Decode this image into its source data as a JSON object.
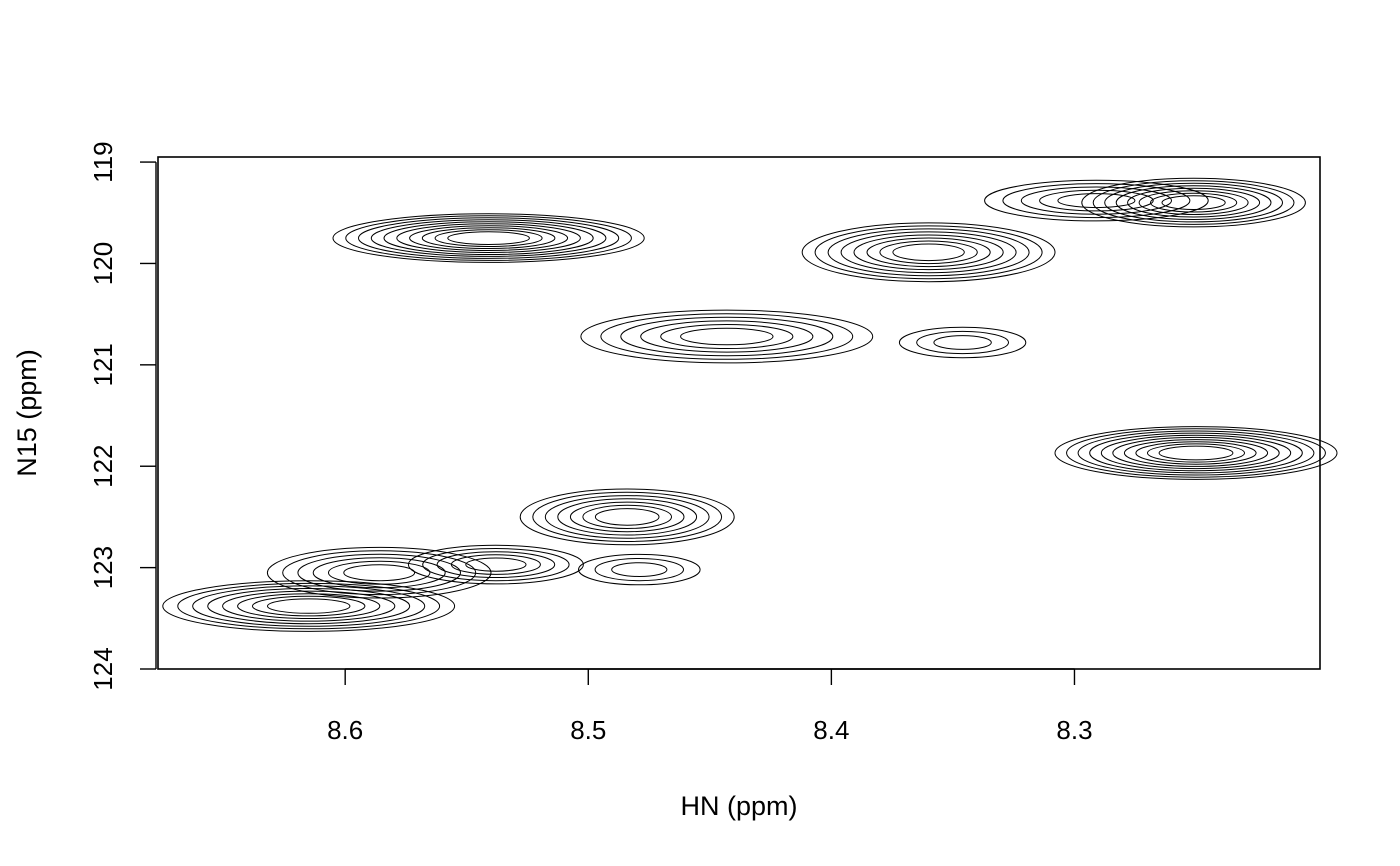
{
  "chart_data": {
    "type": "contour",
    "title": "",
    "xlabel": "HN (ppm)",
    "ylabel": "N15 (ppm)",
    "xlim": [
      8.677,
      8.199
    ],
    "ylim": [
      124.0,
      118.95
    ],
    "x_reversed": true,
    "y_reversed": true,
    "grid": false,
    "xticks": [
      8.6,
      8.5,
      8.4,
      8.3
    ],
    "xtick_labels": [
      "8.6",
      "8.5",
      "8.4",
      "8.3"
    ],
    "yticks": [
      119,
      120,
      121,
      122,
      123,
      124
    ],
    "ytick_labels": [
      "119",
      "120",
      "121",
      "122",
      "123",
      "124"
    ],
    "contour_color": "#000000",
    "peaks": [
      {
        "hn": 8.541,
        "n15": 119.75,
        "w_hn": 0.064,
        "w_n15": 0.48,
        "levels": 10
      },
      {
        "hn": 8.443,
        "n15": 120.72,
        "w_hn": 0.06,
        "w_n15": 0.52,
        "levels": 6
      },
      {
        "hn": 8.36,
        "n15": 119.89,
        "w_hn": 0.052,
        "w_n15": 0.58,
        "levels": 8
      },
      {
        "hn": 8.346,
        "n15": 120.78,
        "w_hn": 0.026,
        "w_n15": 0.3,
        "levels": 3
      },
      {
        "hn": 8.291,
        "n15": 119.38,
        "w_hn": 0.046,
        "w_n15": 0.4,
        "levels": 5
      },
      {
        "hn": 8.251,
        "n15": 119.4,
        "w_hn": 0.046,
        "w_n15": 0.48,
        "levels": 8
      },
      {
        "hn": 8.25,
        "n15": 121.87,
        "w_hn": 0.058,
        "w_n15": 0.52,
        "levels": 10
      },
      {
        "hn": 8.484,
        "n15": 122.5,
        "w_hn": 0.044,
        "w_n15": 0.55,
        "levels": 7
      },
      {
        "hn": 8.479,
        "n15": 123.02,
        "w_hn": 0.025,
        "w_n15": 0.3,
        "levels": 3
      },
      {
        "hn": 8.615,
        "n15": 123.38,
        "w_hn": 0.06,
        "w_n15": 0.5,
        "levels": 8
      },
      {
        "hn": 8.586,
        "n15": 123.05,
        "w_hn": 0.046,
        "w_n15": 0.5,
        "levels": 6
      },
      {
        "hn": 8.538,
        "n15": 122.97,
        "w_hn": 0.036,
        "w_n15": 0.38,
        "levels": 5
      }
    ]
  }
}
